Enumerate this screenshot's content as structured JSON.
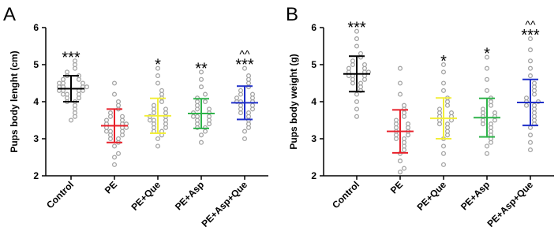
{
  "chart_data": [
    {
      "type": "dotplot",
      "panel_label": "A",
      "ylabel": "Pups body lenght (cm)",
      "categories": [
        "Control",
        "PE",
        "PE+Que",
        "PE+Asp",
        "PE+Asp+Que"
      ],
      "colors": [
        "#000000",
        "#e8202a",
        "#f2ee3a",
        "#2fb34a",
        "#1f2fc8"
      ],
      "point_color": "#a6a6a6",
      "means": [
        4.35,
        3.35,
        3.62,
        3.68,
        3.97
      ],
      "sd": [
        0.35,
        0.45,
        0.47,
        0.4,
        0.45
      ],
      "significance": [
        "***",
        null,
        "*",
        "**",
        "***"
      ],
      "significance_extra": [
        null,
        null,
        null,
        null,
        "^^"
      ],
      "ylim": [
        2,
        6
      ],
      "yticks": [
        2,
        3,
        4,
        5,
        6
      ],
      "points": [
        [
          3.5,
          3.6,
          3.7,
          3.8,
          3.9,
          4.0,
          4.0,
          4.1,
          4.1,
          4.2,
          4.2,
          4.2,
          4.3,
          4.3,
          4.3,
          4.3,
          4.4,
          4.4,
          4.4,
          4.4,
          4.5,
          4.5,
          4.5,
          4.6,
          4.6,
          4.7,
          4.7,
          4.8,
          4.9,
          5.0,
          5.1
        ],
        [
          2.3,
          2.5,
          2.6,
          2.8,
          2.9,
          3.0,
          3.0,
          3.1,
          3.1,
          3.2,
          3.2,
          3.2,
          3.3,
          3.3,
          3.3,
          3.4,
          3.4,
          3.4,
          3.5,
          3.5,
          3.6,
          3.6,
          3.7,
          3.8,
          3.9,
          4.0,
          4.2,
          4.5
        ],
        [
          2.8,
          3.0,
          3.1,
          3.2,
          3.2,
          3.3,
          3.3,
          3.4,
          3.4,
          3.5,
          3.5,
          3.5,
          3.6,
          3.6,
          3.7,
          3.7,
          3.8,
          3.8,
          3.9,
          4.0,
          4.1,
          4.2,
          4.3,
          4.5,
          4.7,
          4.9
        ],
        [
          2.9,
          3.1,
          3.2,
          3.3,
          3.3,
          3.4,
          3.4,
          3.5,
          3.5,
          3.6,
          3.6,
          3.6,
          3.7,
          3.7,
          3.8,
          3.8,
          3.9,
          4.0,
          4.0,
          4.1,
          4.2,
          4.4,
          4.6,
          4.8
        ],
        [
          3.0,
          3.2,
          3.3,
          3.4,
          3.5,
          3.6,
          3.7,
          3.7,
          3.8,
          3.8,
          3.9,
          3.9,
          4.0,
          4.0,
          4.0,
          4.1,
          4.1,
          4.2,
          4.2,
          4.3,
          4.4,
          4.5,
          4.6,
          4.7,
          4.9
        ]
      ]
    },
    {
      "type": "dotplot",
      "panel_label": "B",
      "ylabel": "Pups body weight (g)",
      "categories": [
        "Control",
        "PE",
        "PE+Que",
        "PE+Asp",
        "PE+Asp+Que"
      ],
      "colors": [
        "#000000",
        "#e8202a",
        "#f2ee3a",
        "#2fb34a",
        "#1f2fc8"
      ],
      "point_color": "#a6a6a6",
      "means": [
        4.75,
        3.2,
        3.55,
        3.57,
        3.98
      ],
      "sd": [
        0.48,
        0.58,
        0.55,
        0.52,
        0.62
      ],
      "significance": [
        "***",
        null,
        "*",
        "*",
        "***"
      ],
      "significance_extra": [
        null,
        null,
        null,
        null,
        "^^"
      ],
      "ylim": [
        2,
        6
      ],
      "yticks": [
        2,
        3,
        4,
        5,
        6
      ],
      "points": [
        [
          3.6,
          3.8,
          4.0,
          4.2,
          4.3,
          4.4,
          4.5,
          4.5,
          4.6,
          4.6,
          4.7,
          4.7,
          4.7,
          4.8,
          4.8,
          4.8,
          4.9,
          4.9,
          5.0,
          5.0,
          5.1,
          5.2,
          5.3,
          5.5,
          5.7,
          5.9
        ],
        [
          2.1,
          2.2,
          2.4,
          2.6,
          2.7,
          2.8,
          2.9,
          3.0,
          3.0,
          3.1,
          3.1,
          3.2,
          3.2,
          3.3,
          3.3,
          3.4,
          3.4,
          3.5,
          3.6,
          3.7,
          3.8,
          3.9,
          4.2,
          4.5,
          4.9
        ],
        [
          2.3,
          2.6,
          2.8,
          3.0,
          3.1,
          3.2,
          3.3,
          3.4,
          3.4,
          3.5,
          3.5,
          3.6,
          3.6,
          3.7,
          3.7,
          3.8,
          3.9,
          4.0,
          4.1,
          4.3,
          4.5,
          4.8,
          5.0
        ],
        [
          2.6,
          2.8,
          2.9,
          3.0,
          3.1,
          3.2,
          3.3,
          3.4,
          3.4,
          3.5,
          3.5,
          3.6,
          3.6,
          3.7,
          3.7,
          3.8,
          3.9,
          4.0,
          4.1,
          4.3,
          4.6,
          4.9,
          5.2
        ],
        [
          2.7,
          2.9,
          3.1,
          3.3,
          3.4,
          3.5,
          3.6,
          3.7,
          3.8,
          3.9,
          3.9,
          4.0,
          4.0,
          4.1,
          4.2,
          4.3,
          4.4,
          4.5,
          4.7,
          4.9,
          5.1,
          5.4,
          5.7
        ]
      ]
    }
  ]
}
